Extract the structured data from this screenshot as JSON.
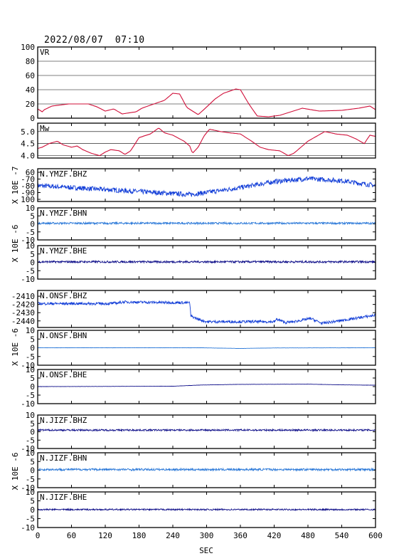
{
  "header": {
    "datetime": "2022/08/07  07:10"
  },
  "colors": {
    "fit": "#d0103a",
    "station_dark": "#10108a",
    "station_blue": "#1540d8",
    "station_light": "#2a78d8",
    "frame": "#000000"
  },
  "chart_data": {
    "type": "line",
    "xlabel": "SEC",
    "xlim": [
      0,
      600
    ],
    "xticks": [
      "0",
      "60",
      "120",
      "180",
      "240",
      "300",
      "360",
      "420",
      "480",
      "540",
      "600"
    ],
    "panels": [
      {
        "id": "vr",
        "label": "VR",
        "unit": "",
        "ylim": [
          0,
          100
        ],
        "yticks": [
          "0",
          "20",
          "40",
          "60",
          "80",
          "100"
        ],
        "grid": true,
        "color": "#d0103a",
        "x": [
          0,
          8,
          12,
          25,
          55,
          90,
          105,
          120,
          135,
          150,
          175,
          185,
          210,
          225,
          240,
          252,
          265,
          275,
          285,
          295,
          315,
          330,
          352,
          360,
          375,
          390,
          410,
          430,
          470,
          500,
          540,
          570,
          590,
          600
        ],
        "values": [
          13,
          9,
          12,
          17,
          20,
          20,
          16,
          10,
          13,
          6,
          9,
          14,
          21,
          25,
          35,
          34,
          15,
          10,
          5,
          12,
          27,
          35,
          41,
          40,
          20,
          3,
          2,
          4,
          14,
          10,
          11,
          14,
          17,
          12
        ]
      },
      {
        "id": "mw",
        "label": "Mw",
        "unit": "",
        "ylim": [
          3.9,
          5.35
        ],
        "yticks": [
          "4.0",
          "4.5",
          "5.0"
        ],
        "grid": true,
        "color": "#d0103a",
        "x": [
          0,
          8,
          20,
          35,
          45,
          60,
          70,
          80,
          95,
          110,
          120,
          130,
          145,
          155,
          165,
          180,
          200,
          215,
          225,
          240,
          260,
          270,
          275,
          285,
          295,
          305,
          325,
          340,
          360,
          380,
          395,
          410,
          430,
          445,
          455,
          465,
          480,
          495,
          510,
          530,
          550,
          565,
          580,
          590,
          600
        ],
        "values": [
          4.3,
          4.35,
          4.5,
          4.6,
          4.45,
          4.35,
          4.4,
          4.25,
          4.1,
          4.0,
          4.15,
          4.25,
          4.2,
          4.05,
          4.2,
          4.75,
          4.9,
          5.15,
          4.95,
          4.85,
          4.6,
          4.4,
          4.1,
          4.35,
          4.8,
          5.1,
          5.0,
          4.95,
          4.9,
          4.6,
          4.35,
          4.25,
          4.2,
          4.0,
          4.1,
          4.3,
          4.6,
          4.8,
          5.0,
          4.9,
          4.85,
          4.7,
          4.5,
          4.85,
          4.8
        ]
      },
      {
        "id": "ymzf-bhz",
        "label": "N.YMZF.BHZ",
        "unit": "X 10E -7",
        "ylim": [
          -100,
          65
        ],
        "yticks": [
          "60",
          "-70",
          "-80",
          "-90",
          "100"
        ],
        "grid": false,
        "color": "#1540d8",
        "x": [
          0,
          30,
          60,
          120,
          180,
          240,
          270,
          300,
          360,
          420,
          480,
          540,
          600
        ],
        "values": [
          -20,
          -25,
          -30,
          -40,
          -50,
          -60,
          -65,
          -55,
          -30,
          0,
          15,
          5,
          -20
        ],
        "noise": 12
      },
      {
        "id": "ymzf-bhn",
        "label": "N.YMZF.BHN",
        "unit": "X 10E -6",
        "ylim": [
          -10,
          10
        ],
        "yticks": [
          "-10",
          "-5",
          "0",
          "5",
          "10"
        ],
        "grid": false,
        "color": "#2a78d8",
        "x": [
          0,
          600
        ],
        "values": [
          0.4,
          0.4
        ],
        "noise": 0.6
      },
      {
        "id": "ymzf-bhe",
        "label": "N.YMZF.BHE",
        "unit": "X 10E -6",
        "ylim": [
          -10,
          10
        ],
        "yticks": [
          "-10",
          "-5",
          "0",
          "5",
          "10"
        ],
        "grid": false,
        "color": "#10108a",
        "x": [
          0,
          600
        ],
        "values": [
          0.3,
          0.3
        ],
        "noise": 0.6
      },
      {
        "id": "onsf-bhz",
        "label": "N.ONSF.BHZ",
        "unit": "X 10E -6",
        "ylim": [
          -2448,
          -2403
        ],
        "yticks": [
          "-2410",
          "-2420",
          "-2430",
          "-2440"
        ],
        "grid": false,
        "color": "#1540d8",
        "x": [
          0,
          125,
          145,
          150,
          270,
          272,
          285,
          300,
          420,
          425,
          440,
          455,
          485,
          505,
          535,
          600
        ],
        "values": [
          -2419,
          -2419,
          -2418,
          -2417,
          -2418,
          -2434,
          -2438,
          -2441,
          -2441,
          -2438,
          -2442,
          -2441,
          -2437,
          -2443,
          -2440,
          -2433
        ],
        "noise": 1.6
      },
      {
        "id": "onsf-bhn",
        "label": "N.ONSF.BHN",
        "unit": "X 10E -6",
        "ylim": [
          -10,
          10
        ],
        "yticks": [
          "-10",
          "-5",
          "0",
          "5",
          "10"
        ],
        "grid": false,
        "color": "#2a78d8",
        "x": [
          0,
          290,
          360,
          420,
          600
        ],
        "values": [
          0,
          0,
          -0.4,
          -0.1,
          0
        ],
        "noise": 0.05
      },
      {
        "id": "onsf-bhe",
        "label": "N.ONSF.BHE",
        "unit": "X 10E -6",
        "ylim": [
          -10,
          10
        ],
        "yticks": [
          "-10",
          "-5",
          "0",
          "5",
          "10"
        ],
        "grid": false,
        "color": "#10108a",
        "x": [
          0,
          240,
          290,
          360,
          480,
          540,
          600
        ],
        "values": [
          0,
          0.2,
          0.9,
          1.3,
          1.4,
          1.0,
          0.8
        ],
        "noise": 0.05
      },
      {
        "id": "jizf-bhz",
        "label": "N.JIZF.BHZ",
        "unit": "X 10E -6",
        "ylim": [
          -10,
          10
        ],
        "yticks": [
          "-10",
          "-5",
          "0",
          "5",
          "10"
        ],
        "grid": false,
        "color": "#10108a",
        "x": [
          0,
          600
        ],
        "values": [
          1.0,
          1.0
        ],
        "noise": 0.5
      },
      {
        "id": "jizf-bhn",
        "label": "N.JIZF.BHN",
        "unit": "X 10E -6",
        "ylim": [
          -10,
          10
        ],
        "yticks": [
          "-10",
          "-5",
          "0",
          "5",
          "10"
        ],
        "grid": false,
        "color": "#2a78d8",
        "x": [
          0,
          600
        ],
        "values": [
          0.4,
          0.4
        ],
        "noise": 0.6
      },
      {
        "id": "jizf-bhe",
        "label": "N.JIZF.BHE",
        "unit": "X 10E -6",
        "ylim": [
          -10,
          10
        ],
        "yticks": [
          "-10",
          "-5",
          "0",
          "5",
          "10"
        ],
        "grid": false,
        "color": "#10108a",
        "x": [
          0,
          600
        ],
        "values": [
          0.1,
          0.1
        ],
        "noise": 0.4
      }
    ]
  }
}
